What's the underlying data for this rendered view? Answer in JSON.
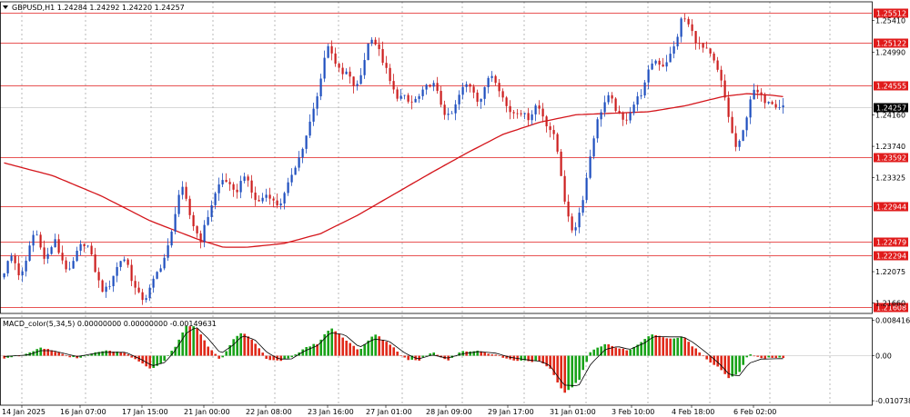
{
  "header": {
    "title": "GBPUSD,H1 1.24284 1.24292 1.24220 1.24257",
    "indicator": "MACD_color(5,34,5) 0.00000000 0.00000000 -0.00149631"
  },
  "colors": {
    "up_candle": "#1f4fbf",
    "down_candle": "#cc1f1f",
    "level_line": "#e01b1b",
    "ma_line": "#d4141a",
    "hist_up": "#1aa31a",
    "hist_down": "#e02a1a",
    "signal_line": "#000000",
    "current_price_bg": "#000000",
    "grid": "#8c8c8c"
  },
  "chart_data": [
    {
      "type": "line",
      "name": "price",
      "y_ticks": [
        1.2541,
        1.2499,
        1.2416,
        1.2374,
        1.23325,
        1.22075,
        1.2166
      ],
      "y_tick_labels": [
        "1.25410",
        "1.24990",
        "1.24160",
        "1.23740",
        "1.23325",
        "1.22075",
        "1.21660"
      ],
      "ylim": [
        1.2152,
        1.2566
      ],
      "levels": [
        1.25512,
        1.25122,
        1.24555,
        1.23592,
        1.22944,
        1.22479,
        1.22294,
        1.21608
      ],
      "level_labels": [
        "1.25512",
        "1.25122",
        "1.24555",
        "1.23592",
        "1.22944",
        "1.22479",
        "1.22294",
        "1.21608"
      ],
      "current_price": 1.24257,
      "current_price_label": "1.24257",
      "x_labels": [
        "14 Jan 2025",
        "16 Jan 07:00",
        "17 Jan 15:00",
        "21 Jan 00:00",
        "22 Jan 08:00",
        "23 Jan 16:00",
        "27 Jan 01:00",
        "28 Jan 09:00",
        "29 Jan 17:00",
        "31 Jan 01:00",
        "3 Feb 10:00",
        "4 Feb 18:00",
        "6 Feb 02:00"
      ],
      "candle_path": [
        [
          0,
          1.22
        ],
        [
          4,
          1.2212
        ],
        [
          8,
          1.223
        ],
        [
          12,
          1.2218
        ],
        [
          16,
          1.2198
        ],
        [
          20,
          1.2215
        ],
        [
          24,
          1.2245
        ],
        [
          28,
          1.2262
        ],
        [
          32,
          1.2248
        ],
        [
          36,
          1.2221
        ],
        [
          40,
          1.2235
        ],
        [
          44,
          1.225
        ],
        [
          48,
          1.2232
        ],
        [
          52,
          1.2218
        ],
        [
          56,
          1.2205
        ],
        [
          60,
          1.2222
        ],
        [
          64,
          1.2238
        ],
        [
          68,
          1.2246
        ],
        [
          72,
          1.224
        ],
        [
          76,
          1.2218
        ],
        [
          80,
          1.2195
        ],
        [
          84,
          1.2182
        ],
        [
          88,
          1.2185
        ],
        [
          92,
          1.2202
        ],
        [
          96,
          1.2215
        ],
        [
          100,
          1.2228
        ],
        [
          104,
          1.2218
        ],
        [
          108,
          1.2195
        ],
        [
          112,
          1.2178
        ],
        [
          116,
          1.2172
        ],
        [
          120,
          1.2175
        ],
        [
          124,
          1.219
        ],
        [
          128,
          1.2205
        ],
        [
          132,
          1.2218
        ],
        [
          136,
          1.2232
        ],
        [
          140,
          1.2256
        ],
        [
          144,
          1.2295
        ],
        [
          148,
          1.2322
        ],
        [
          152,
          1.2302
        ],
        [
          156,
          1.2278
        ],
        [
          160,
          1.2262
        ],
        [
          164,
          1.225
        ],
        [
          168,
          1.227
        ],
        [
          172,
          1.2292
        ],
        [
          176,
          1.231
        ],
        [
          180,
          1.2326
        ],
        [
          184,
          1.2332
        ],
        [
          188,
          1.232
        ],
        [
          192,
          1.231
        ],
        [
          196,
          1.2322
        ],
        [
          200,
          1.2338
        ],
        [
          204,
          1.232
        ],
        [
          208,
          1.2305
        ],
        [
          212,
          1.23
        ],
        [
          216,
          1.2308
        ],
        [
          220,
          1.2312
        ],
        [
          224,
          1.23
        ],
        [
          228,
          1.2296
        ],
        [
          232,
          1.2305
        ],
        [
          236,
          1.2322
        ],
        [
          240,
          1.2344
        ],
        [
          244,
          1.2355
        ],
        [
          248,
          1.2372
        ],
        [
          252,
          1.2392
        ],
        [
          256,
          1.2418
        ],
        [
          260,
          1.244
        ],
        [
          264,
          1.2478
        ],
        [
          268,
          1.2508
        ],
        [
          272,
          1.25
        ],
        [
          276,
          1.248
        ],
        [
          280,
          1.2468
        ],
        [
          284,
          1.2472
        ],
        [
          288,
          1.246
        ],
        [
          292,
          1.245
        ],
        [
          296,
          1.247
        ],
        [
          300,
          1.25
        ],
        [
          304,
          1.2522
        ],
        [
          308,
          1.251
        ],
        [
          312,
          1.2495
        ],
        [
          316,
          1.2478
        ],
        [
          320,
          1.2458
        ],
        [
          324,
          1.2442
        ],
        [
          328,
          1.244
        ],
        [
          332,
          1.2438
        ],
        [
          336,
          1.243
        ],
        [
          340,
          1.2435
        ],
        [
          344,
          1.244
        ],
        [
          348,
          1.2448
        ],
        [
          352,
          1.2458
        ],
        [
          356,
          1.2455
        ],
        [
          360,
          1.2438
        ],
        [
          364,
          1.242
        ],
        [
          368,
          1.2412
        ],
        [
          372,
          1.242
        ],
        [
          376,
          1.244
        ],
        [
          380,
          1.2452
        ],
        [
          384,
          1.2458
        ],
        [
          388,
          1.245
        ],
        [
          392,
          1.2435
        ],
        [
          396,
          1.244
        ],
        [
          400,
          1.2465
        ],
        [
          404,
          1.247
        ],
        [
          408,
          1.2458
        ],
        [
          412,
          1.244
        ],
        [
          416,
          1.2425
        ],
        [
          420,
          1.2418
        ],
        [
          424,
          1.2422
        ],
        [
          428,
          1.242
        ],
        [
          432,
          1.241
        ],
        [
          436,
          1.2418
        ],
        [
          440,
          1.243
        ],
        [
          444,
          1.242
        ],
        [
          448,
          1.2405
        ],
        [
          452,
          1.2395
        ],
        [
          456,
          1.238
        ],
        [
          460,
          1.234
        ],
        [
          464,
          1.2295
        ],
        [
          468,
          1.2262
        ],
        [
          472,
          1.2268
        ],
        [
          476,
          1.229
        ],
        [
          480,
          1.232
        ],
        [
          484,
          1.236
        ],
        [
          488,
          1.2395
        ],
        [
          492,
          1.2418
        ],
        [
          496,
          1.2432
        ],
        [
          500,
          1.244
        ],
        [
          504,
          1.2428
        ],
        [
          508,
          1.2415
        ],
        [
          512,
          1.2405
        ],
        [
          516,
          1.2418
        ],
        [
          520,
          1.243
        ],
        [
          524,
          1.244
        ],
        [
          528,
          1.245
        ],
        [
          532,
          1.2472
        ],
        [
          536,
          1.249
        ],
        [
          540,
          1.2486
        ],
        [
          544,
          1.2482
        ],
        [
          548,
          1.249
        ],
        [
          552,
          1.25
        ],
        [
          556,
          1.2522
        ],
        [
          560,
          1.2548
        ],
        [
          564,
          1.2538
        ],
        [
          568,
          1.2525
        ],
        [
          572,
          1.2512
        ],
        [
          576,
          1.2505
        ],
        [
          580,
          1.25
        ],
        [
          584,
          1.2492
        ],
        [
          588,
          1.2478
        ],
        [
          592,
          1.2458
        ],
        [
          596,
          1.243
        ],
        [
          600,
          1.2395
        ],
        [
          604,
          1.2372
        ],
        [
          608,
          1.238
        ],
        [
          612,
          1.241
        ],
        [
          616,
          1.244
        ],
        [
          620,
          1.2448
        ],
        [
          624,
          1.244
        ],
        [
          628,
          1.2435
        ],
        [
          632,
          1.2437
        ],
        [
          636,
          1.243
        ],
        [
          640,
          1.2428
        ]
      ],
      "ma_path": [
        [
          0,
          1.2352
        ],
        [
          40,
          1.2335
        ],
        [
          80,
          1.2308
        ],
        [
          120,
          1.2275
        ],
        [
          160,
          1.225
        ],
        [
          180,
          1.224
        ],
        [
          200,
          1.224
        ],
        [
          230,
          1.2245
        ],
        [
          260,
          1.2258
        ],
        [
          290,
          1.2282
        ],
        [
          320,
          1.231
        ],
        [
          350,
          1.2338
        ],
        [
          380,
          1.2365
        ],
        [
          410,
          1.239
        ],
        [
          440,
          1.2406
        ],
        [
          470,
          1.2416
        ],
        [
          500,
          1.2418
        ],
        [
          530,
          1.242
        ],
        [
          560,
          1.2428
        ],
        [
          590,
          1.244
        ],
        [
          610,
          1.2444
        ],
        [
          630,
          1.2442
        ],
        [
          640,
          1.244
        ]
      ]
    },
    {
      "type": "bar",
      "name": "MACD_color(5,34,5)",
      "y_ticks": [
        0.0084161,
        0.0,
        -0.0107387
      ],
      "y_tick_labels": [
        "0.0084161",
        "0.00",
        "-0.0107387"
      ],
      "ylim": [
        -0.0118,
        0.009
      ],
      "histogram_points": [
        [
          0,
          -0.0005
        ],
        [
          20,
          0.0005
        ],
        [
          30,
          0.0018
        ],
        [
          40,
          0.0012
        ],
        [
          60,
          -0.0008
        ],
        [
          80,
          0.0012
        ],
        [
          100,
          0.0006
        ],
        [
          112,
          -0.0018
        ],
        [
          122,
          -0.0032
        ],
        [
          132,
          -0.001
        ],
        [
          140,
          0.002
        ],
        [
          150,
          0.0072
        ],
        [
          158,
          0.0068
        ],
        [
          168,
          0.002
        ],
        [
          178,
          -0.001
        ],
        [
          188,
          0.004
        ],
        [
          196,
          0.0055
        ],
        [
          206,
          0.003
        ],
        [
          216,
          -0.0008
        ],
        [
          226,
          -0.0012
        ],
        [
          236,
          -0.0006
        ],
        [
          246,
          0.0018
        ],
        [
          258,
          0.003
        ],
        [
          268,
          0.0068
        ],
        [
          280,
          0.004
        ],
        [
          292,
          0.0012
        ],
        [
          304,
          0.0052
        ],
        [
          316,
          0.003
        ],
        [
          330,
          -0.0008
        ],
        [
          340,
          -0.0012
        ],
        [
          352,
          0.001
        ],
        [
          364,
          -0.0012
        ],
        [
          376,
          0.001
        ],
        [
          390,
          0.0012
        ],
        [
          404,
          0.0002
        ],
        [
          416,
          -0.001
        ],
        [
          430,
          -0.0012
        ],
        [
          440,
          -0.0015
        ],
        [
          448,
          -0.003
        ],
        [
          460,
          -0.009
        ],
        [
          472,
          -0.006
        ],
        [
          482,
          0.001
        ],
        [
          494,
          0.003
        ],
        [
          504,
          0.0018
        ],
        [
          514,
          0.0012
        ],
        [
          526,
          0.004
        ],
        [
          534,
          0.0052
        ],
        [
          546,
          0.004
        ],
        [
          558,
          0.0045
        ],
        [
          566,
          0.0022
        ],
        [
          578,
          -0.001
        ],
        [
          588,
          -0.003
        ],
        [
          596,
          -0.0055
        ],
        [
          604,
          -0.004
        ],
        [
          612,
          0.0005
        ],
        [
          622,
          -0.0006
        ],
        [
          640,
          -0.0006
        ]
      ],
      "signal_points": [
        [
          0,
          -0.0002
        ],
        [
          20,
          0.0002
        ],
        [
          30,
          0.0012
        ],
        [
          40,
          0.0012
        ],
        [
          60,
          -0.0002
        ],
        [
          80,
          0.0008
        ],
        [
          100,
          0.0008
        ],
        [
          112,
          -0.0008
        ],
        [
          122,
          -0.0024
        ],
        [
          132,
          -0.0016
        ],
        [
          140,
          0.001
        ],
        [
          150,
          0.0055
        ],
        [
          158,
          0.0068
        ],
        [
          168,
          0.004
        ],
        [
          178,
          0.0005
        ],
        [
          188,
          0.0025
        ],
        [
          196,
          0.0048
        ],
        [
          206,
          0.0038
        ],
        [
          216,
          0.0008
        ],
        [
          226,
          -0.0008
        ],
        [
          236,
          -0.0008
        ],
        [
          246,
          0.001
        ],
        [
          258,
          0.0025
        ],
        [
          268,
          0.0055
        ],
        [
          280,
          0.005
        ],
        [
          292,
          0.002
        ],
        [
          304,
          0.004
        ],
        [
          316,
          0.0035
        ],
        [
          330,
          0.0005
        ],
        [
          340,
          -0.0008
        ],
        [
          352,
          0.0002
        ],
        [
          364,
          -0.0006
        ],
        [
          376,
          0.0004
        ],
        [
          390,
          0.001
        ],
        [
          404,
          0.0006
        ],
        [
          416,
          -0.0004
        ],
        [
          430,
          -0.001
        ],
        [
          440,
          -0.0013
        ],
        [
          448,
          -0.0022
        ],
        [
          460,
          -0.007
        ],
        [
          472,
          -0.0072
        ],
        [
          482,
          -0.002
        ],
        [
          494,
          0.0015
        ],
        [
          504,
          0.0022
        ],
        [
          514,
          0.0015
        ],
        [
          526,
          0.003
        ],
        [
          534,
          0.0046
        ],
        [
          546,
          0.0045
        ],
        [
          558,
          0.0045
        ],
        [
          566,
          0.0032
        ],
        [
          578,
          0.0005
        ],
        [
          588,
          -0.002
        ],
        [
          596,
          -0.0045
        ],
        [
          604,
          -0.0048
        ],
        [
          612,
          -0.0018
        ],
        [
          622,
          -0.0008
        ],
        [
          640,
          -0.0007
        ]
      ]
    }
  ]
}
